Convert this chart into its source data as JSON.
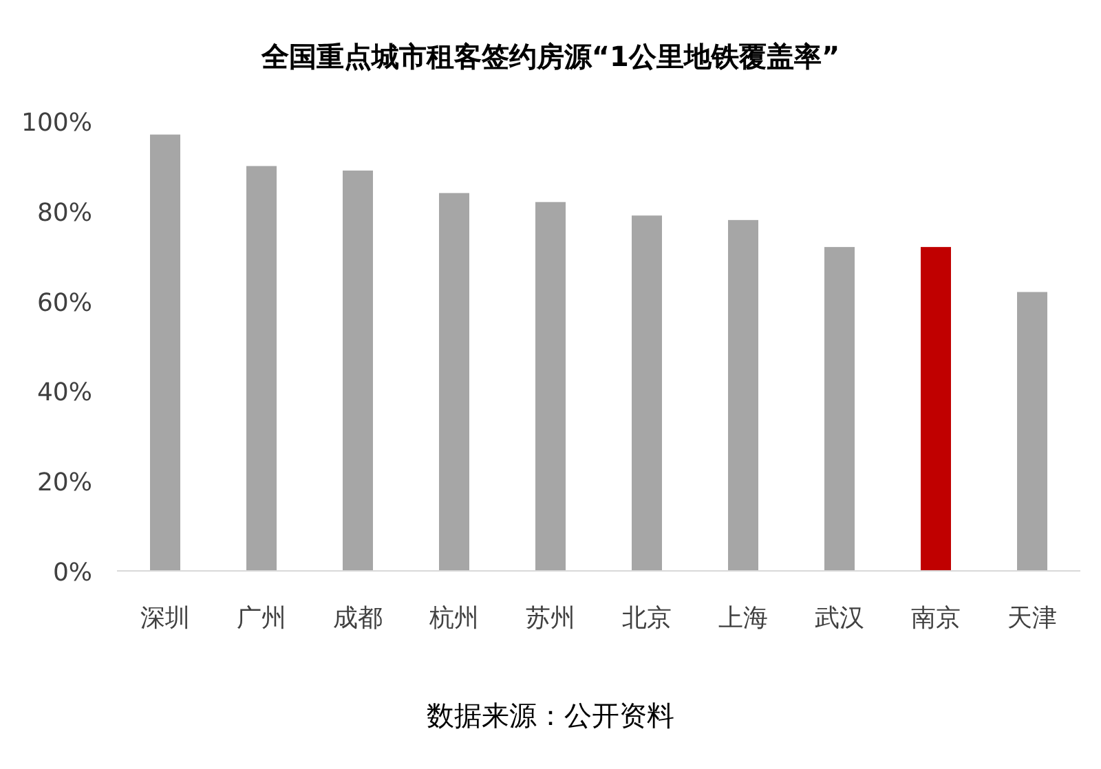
{
  "chart_data": {
    "type": "bar",
    "title": "全国重点城市租客签约房源“1公里地铁覆盖率”",
    "categories": [
      "深圳",
      "广州",
      "成都",
      "杭州",
      "苏州",
      "北京",
      "上海",
      "武汉",
      "南京",
      "天津"
    ],
    "values": [
      97,
      90,
      89,
      84,
      82,
      79,
      78,
      72,
      72,
      62
    ],
    "colors": [
      "#a6a6a6",
      "#a6a6a6",
      "#a6a6a6",
      "#a6a6a6",
      "#a6a6a6",
      "#a6a6a6",
      "#a6a6a6",
      "#a6a6a6",
      "#c00000",
      "#a6a6a6"
    ],
    "ylim": [
      0,
      100
    ],
    "yticks": [
      {
        "value": 0,
        "label": "0%"
      },
      {
        "value": 20,
        "label": "20%"
      },
      {
        "value": 40,
        "label": "40%"
      },
      {
        "value": 60,
        "label": "60%"
      },
      {
        "value": 80,
        "label": "80%"
      },
      {
        "value": 100,
        "label": "100%"
      }
    ],
    "grid": false,
    "annotations": [
      "数据来源：公开资料"
    ]
  }
}
